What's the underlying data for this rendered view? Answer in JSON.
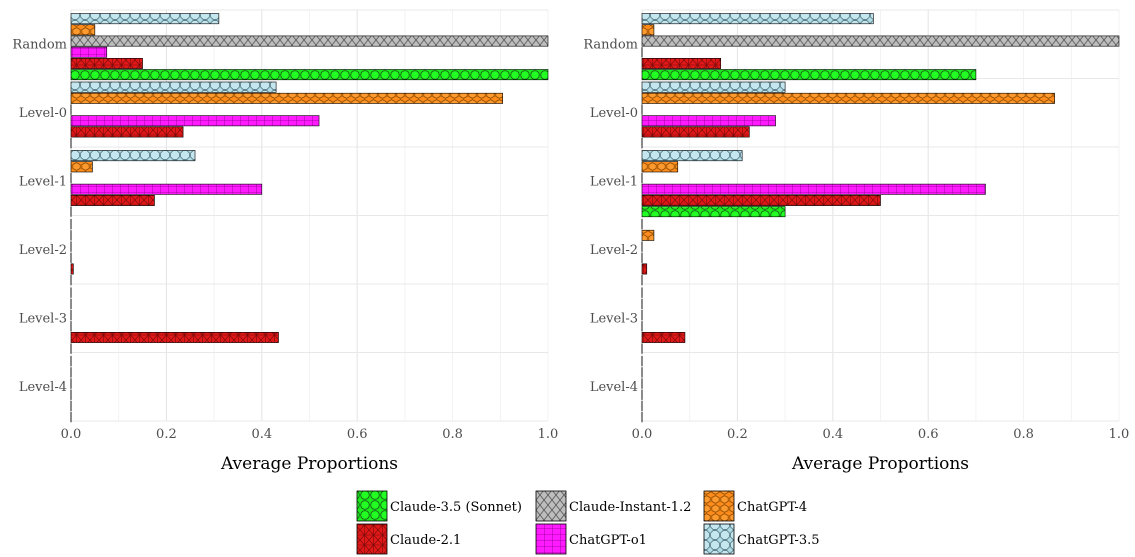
{
  "chart_data": [
    {
      "type": "bar",
      "orientation": "horizontal",
      "xlabel": "Average Proportions",
      "xlim": [
        0,
        1
      ],
      "xticks": [
        "0.0",
        "0.2",
        "0.4",
        "0.6",
        "0.8",
        "1.0"
      ],
      "categories": [
        "Random",
        "Level-0",
        "Level-1",
        "Level-2",
        "Level-3",
        "Level-4"
      ],
      "grid": true,
      "series": [
        {
          "name": "ChatGPT-3.5",
          "values": [
            0.31,
            0.43,
            0.26,
            0,
            0,
            0
          ]
        },
        {
          "name": "ChatGPT-4",
          "values": [
            0.05,
            0.905,
            0.045,
            0,
            0,
            0
          ]
        },
        {
          "name": "Claude-Instant-1.2",
          "values": [
            1.0,
            0,
            0,
            0,
            0,
            0
          ]
        },
        {
          "name": "ChatGPT-o1",
          "values": [
            0.075,
            0.52,
            0.4,
            0,
            0,
            0
          ]
        },
        {
          "name": "Claude-2.1",
          "values": [
            0.15,
            0.235,
            0.175,
            0.005,
            0.435,
            0
          ]
        },
        {
          "name": "Claude-3.5 (Sonnet)",
          "values": [
            1.0,
            0,
            0,
            0,
            0,
            0
          ]
        }
      ]
    },
    {
      "type": "bar",
      "orientation": "horizontal",
      "xlabel": "Average Proportions",
      "xlim": [
        0,
        1
      ],
      "xticks": [
        "0.0",
        "0.2",
        "0.4",
        "0.6",
        "0.8",
        "1.0"
      ],
      "categories": [
        "Random",
        "Level-0",
        "Level-1",
        "Level-2",
        "Level-3",
        "Level-4"
      ],
      "grid": true,
      "series": [
        {
          "name": "ChatGPT-3.5",
          "values": [
            0.485,
            0.3,
            0.21,
            0,
            0,
            0
          ]
        },
        {
          "name": "ChatGPT-4",
          "values": [
            0.025,
            0.865,
            0.075,
            0.025,
            0,
            0
          ]
        },
        {
          "name": "Claude-Instant-1.2",
          "values": [
            1.0,
            0,
            0,
            0,
            0,
            0
          ]
        },
        {
          "name": "ChatGPT-o1",
          "values": [
            0,
            0.28,
            0.72,
            0,
            0,
            0
          ]
        },
        {
          "name": "Claude-2.1",
          "values": [
            0.165,
            0.225,
            0.5,
            0.01,
            0.09,
            0
          ]
        },
        {
          "name": "Claude-3.5 (Sonnet)",
          "values": [
            0.7,
            0,
            0.3,
            0,
            0,
            0
          ]
        }
      ]
    }
  ],
  "legend": {
    "placement": "bottom",
    "items": [
      {
        "label": "Claude-3.5 (Sonnet)",
        "color": "#1aee1a",
        "pattern": "circles"
      },
      {
        "label": "Claude-Instant-1.2",
        "color": "#bebebe",
        "pattern": "crosshatch"
      },
      {
        "label": "ChatGPT-4",
        "color": "#ff8c1a",
        "pattern": "hexagons"
      },
      {
        "label": "Claude-2.1",
        "color": "#e61919",
        "pattern": "triangles"
      },
      {
        "label": "ChatGPT-o1",
        "color": "#ff1aff",
        "pattern": "grid"
      },
      {
        "label": "ChatGPT-3.5",
        "color": "#b0dce6",
        "pattern": "octagons"
      }
    ]
  }
}
